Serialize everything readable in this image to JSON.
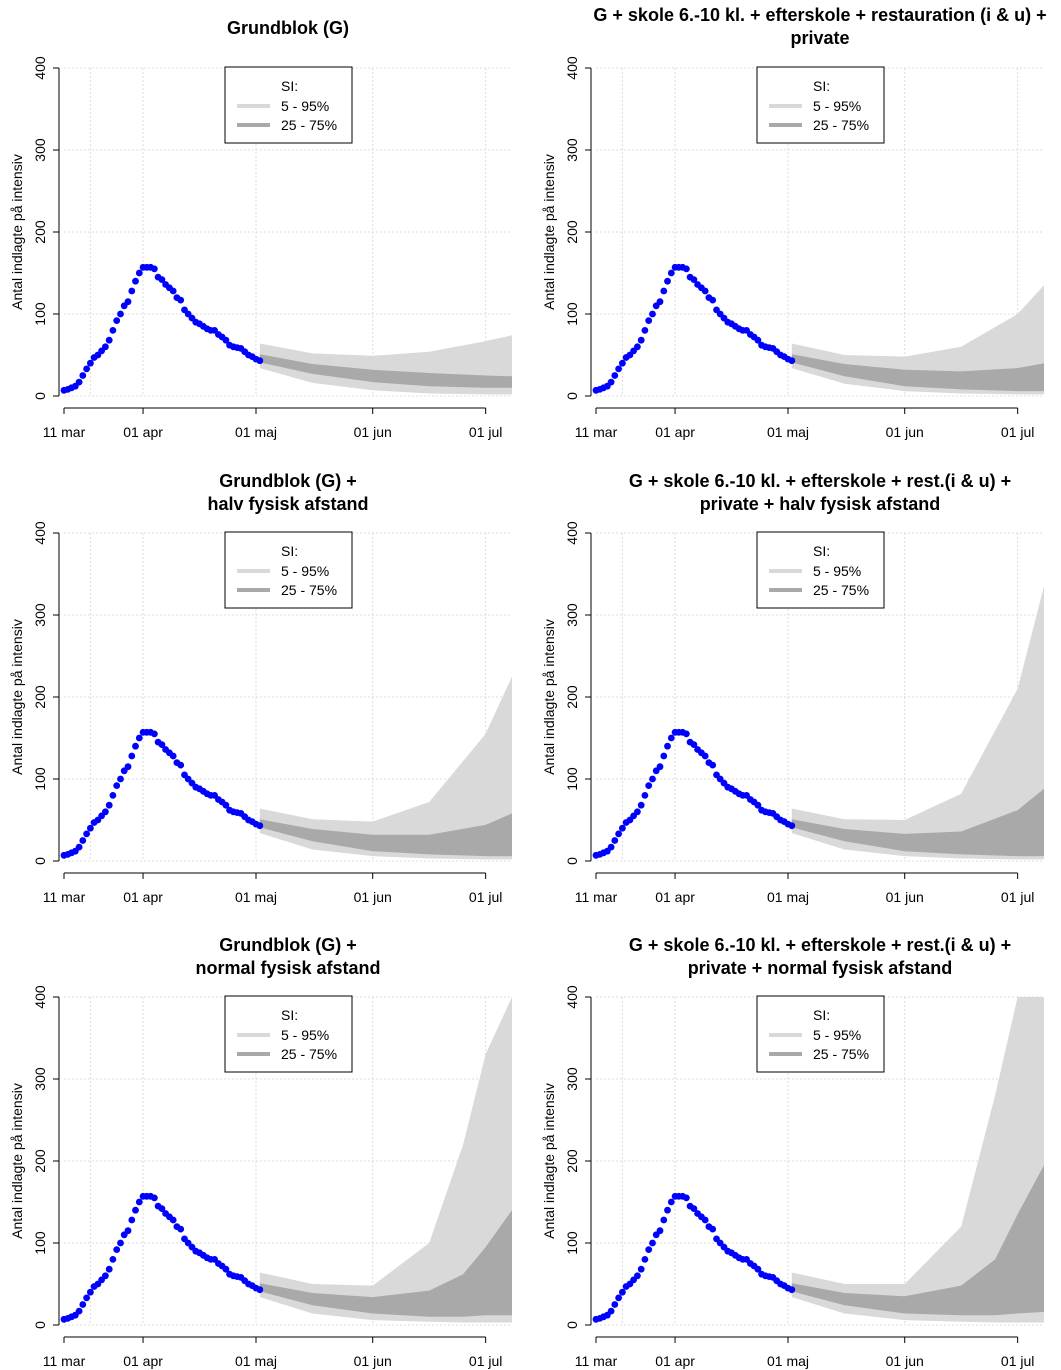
{
  "figure": {
    "ylabel": "Antal indlagte på intensiv",
    "legend": {
      "title": "SI:",
      "items": [
        {
          "label": "5 - 95%",
          "color": "#d9d9d9"
        },
        {
          "label": "25 - 75%",
          "color": "#a9a9a9"
        }
      ]
    },
    "x_ticks": [
      "11 mar",
      "01 apr",
      "01 maj",
      "01 jun",
      "01 jul"
    ],
    "y_ticks": [
      "0",
      "100",
      "200",
      "300",
      "400"
    ]
  },
  "chart_data": [
    {
      "type": "area",
      "title_lines": [
        "Grundblok (G)"
      ],
      "xlabel": "",
      "ylabel": "Antal indlagte på intensiv",
      "xlim": [
        "2020-03-11",
        "2020-07-08"
      ],
      "ylim": [
        0,
        400
      ],
      "grid": true,
      "legend_position": "top-center",
      "observed": {
        "color": "#0000ff"
      },
      "series": [
        {
          "name": "5 - 95%",
          "color": "#d9d9d9",
          "x": [
            "2020-05-02",
            "2020-05-16",
            "2020-06-01",
            "2020-06-16",
            "2020-07-01",
            "2020-07-08"
          ],
          "lower": [
            34,
            16,
            7,
            3,
            2,
            2
          ],
          "upper": [
            64,
            52,
            49,
            54,
            67,
            74
          ]
        },
        {
          "name": "25 - 75%",
          "color": "#a9a9a9",
          "x": [
            "2020-05-02",
            "2020-05-16",
            "2020-06-01",
            "2020-06-16",
            "2020-07-01",
            "2020-07-08"
          ],
          "lower": [
            41,
            27,
            17,
            12,
            10,
            10
          ],
          "upper": [
            51,
            39,
            32,
            28,
            25,
            24
          ]
        }
      ]
    },
    {
      "type": "area",
      "title_lines": [
        "G + skole 6.-10 kl. + efterskole + restauration (i & u) +",
        "private"
      ],
      "xlabel": "",
      "ylabel": "Antal indlagte på intensiv",
      "xlim": [
        "2020-03-11",
        "2020-07-08"
      ],
      "ylim": [
        0,
        400
      ],
      "grid": true,
      "legend_position": "top-center",
      "observed": {
        "color": "#0000ff"
      },
      "series": [
        {
          "name": "5 - 95%",
          "color": "#d9d9d9",
          "x": [
            "2020-05-02",
            "2020-05-16",
            "2020-06-01",
            "2020-06-16",
            "2020-07-01",
            "2020-07-08"
          ],
          "lower": [
            34,
            15,
            6,
            3,
            2,
            2
          ],
          "upper": [
            64,
            50,
            48,
            60,
            100,
            135
          ]
        },
        {
          "name": "25 - 75%",
          "color": "#a9a9a9",
          "x": [
            "2020-05-02",
            "2020-05-16",
            "2020-06-01",
            "2020-06-16",
            "2020-07-01",
            "2020-07-08"
          ],
          "lower": [
            41,
            24,
            12,
            8,
            6,
            6
          ],
          "upper": [
            51,
            39,
            32,
            30,
            34,
            40
          ]
        }
      ]
    },
    {
      "type": "area",
      "title_lines": [
        "Grundblok (G) +",
        "halv fysisk afstand"
      ],
      "xlabel": "",
      "ylabel": "Antal indlagte på intensiv",
      "xlim": [
        "2020-03-11",
        "2020-07-08"
      ],
      "ylim": [
        0,
        400
      ],
      "grid": true,
      "legend_position": "top-center",
      "observed": {
        "color": "#0000ff"
      },
      "series": [
        {
          "name": "5 - 95%",
          "color": "#d9d9d9",
          "x": [
            "2020-05-02",
            "2020-05-16",
            "2020-06-01",
            "2020-06-16",
            "2020-07-01",
            "2020-07-08"
          ],
          "lower": [
            34,
            14,
            6,
            3,
            2,
            2
          ],
          "upper": [
            64,
            51,
            48,
            72,
            155,
            225
          ]
        },
        {
          "name": "25 - 75%",
          "color": "#a9a9a9",
          "x": [
            "2020-05-02",
            "2020-05-16",
            "2020-06-01",
            "2020-06-16",
            "2020-07-01",
            "2020-07-08"
          ],
          "lower": [
            41,
            24,
            12,
            8,
            6,
            6
          ],
          "upper": [
            51,
            39,
            32,
            32,
            44,
            58
          ]
        }
      ]
    },
    {
      "type": "area",
      "title_lines": [
        "G + skole 6.-10 kl. + efterskole + rest.(i & u) +",
        "private + halv fysisk afstand"
      ],
      "xlabel": "",
      "ylabel": "Antal indlagte på intensiv",
      "xlim": [
        "2020-03-11",
        "2020-07-08"
      ],
      "ylim": [
        0,
        400
      ],
      "grid": true,
      "legend_position": "top-center",
      "observed": {
        "color": "#0000ff"
      },
      "series": [
        {
          "name": "5 - 95%",
          "color": "#d9d9d9",
          "x": [
            "2020-05-02",
            "2020-05-16",
            "2020-06-01",
            "2020-06-16",
            "2020-07-01",
            "2020-07-08"
          ],
          "lower": [
            34,
            14,
            6,
            3,
            2,
            2
          ],
          "upper": [
            64,
            51,
            50,
            82,
            210,
            335
          ]
        },
        {
          "name": "25 - 75%",
          "color": "#a9a9a9",
          "x": [
            "2020-05-02",
            "2020-05-16",
            "2020-06-01",
            "2020-06-16",
            "2020-07-01",
            "2020-07-08"
          ],
          "lower": [
            41,
            24,
            12,
            8,
            6,
            6
          ],
          "upper": [
            51,
            39,
            33,
            36,
            62,
            88
          ]
        }
      ]
    },
    {
      "type": "area",
      "title_lines": [
        "Grundblok (G) +",
        "normal fysisk afstand"
      ],
      "xlabel": "",
      "ylabel": "Antal indlagte på intensiv",
      "xlim": [
        "2020-03-11",
        "2020-07-08"
      ],
      "ylim": [
        0,
        400
      ],
      "grid": true,
      "legend_position": "top-center",
      "observed": {
        "color": "#0000ff"
      },
      "series": [
        {
          "name": "5 - 95%",
          "color": "#d9d9d9",
          "x": [
            "2020-05-02",
            "2020-05-16",
            "2020-06-01",
            "2020-06-16",
            "2020-06-25",
            "2020-07-01",
            "2020-07-08"
          ],
          "lower": [
            34,
            14,
            6,
            4,
            3,
            3,
            3
          ],
          "upper": [
            64,
            50,
            48,
            100,
            220,
            330,
            410
          ]
        },
        {
          "name": "25 - 75%",
          "color": "#a9a9a9",
          "x": [
            "2020-05-02",
            "2020-05-16",
            "2020-06-01",
            "2020-06-16",
            "2020-06-25",
            "2020-07-01",
            "2020-07-08"
          ],
          "lower": [
            41,
            24,
            14,
            10,
            10,
            12,
            12
          ],
          "upper": [
            51,
            39,
            34,
            42,
            62,
            95,
            140
          ]
        }
      ]
    },
    {
      "type": "area",
      "title_lines": [
        "G + skole 6.-10 kl. + efterskole + rest.(i & u) +",
        "private + normal fysisk afstand"
      ],
      "xlabel": "",
      "ylabel": "Antal indlagte på intensiv",
      "xlim": [
        "2020-03-11",
        "2020-07-08"
      ],
      "ylim": [
        0,
        400
      ],
      "grid": true,
      "legend_position": "top-center",
      "observed": {
        "color": "#0000ff"
      },
      "series": [
        {
          "name": "5 - 95%",
          "color": "#d9d9d9",
          "x": [
            "2020-05-02",
            "2020-05-16",
            "2020-06-01",
            "2020-06-16",
            "2020-06-25",
            "2020-07-01",
            "2020-07-08"
          ],
          "lower": [
            34,
            14,
            6,
            4,
            3,
            3,
            3
          ],
          "upper": [
            64,
            50,
            50,
            120,
            280,
            410,
            410
          ]
        },
        {
          "name": "25 - 75%",
          "color": "#a9a9a9",
          "x": [
            "2020-05-02",
            "2020-05-16",
            "2020-06-01",
            "2020-06-16",
            "2020-06-25",
            "2020-07-01",
            "2020-07-08"
          ],
          "lower": [
            41,
            24,
            14,
            12,
            12,
            14,
            16
          ],
          "upper": [
            51,
            39,
            35,
            48,
            80,
            135,
            195
          ]
        }
      ]
    }
  ],
  "observed_series": {
    "start_date": "2020-03-11",
    "values": [
      7,
      8,
      10,
      12,
      17,
      25,
      33,
      40,
      47,
      50,
      55,
      60,
      68,
      80,
      92,
      100,
      110,
      115,
      128,
      140,
      150,
      157,
      157,
      157,
      155,
      145,
      142,
      136,
      132,
      128,
      120,
      117,
      105,
      100,
      95,
      90,
      88,
      85,
      82,
      80,
      80,
      75,
      72,
      68,
      62,
      60,
      59,
      58,
      54,
      50,
      48,
      45,
      43
    ]
  }
}
